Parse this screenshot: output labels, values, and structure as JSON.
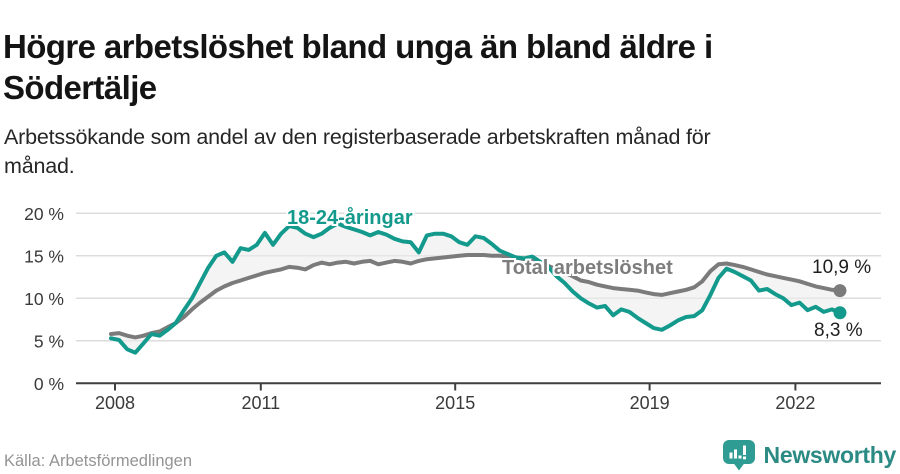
{
  "header": {
    "title_lines": [
      "Högre arbetslöshet bland unga än bland äldre i",
      "Södertälje"
    ],
    "subtitle_lines": [
      "Arbetssökande som andel av den registerbaserade arbetskraften månad för",
      "månad."
    ]
  },
  "footer": {
    "source": "Källa: Arbetsförmedlingen",
    "brand_name": "Newsworthy"
  },
  "colors": {
    "youth_line": "#149a8d",
    "total_line": "#7b7b7b",
    "fill_between": "#ededed",
    "gridline": "#dcdcdc",
    "axis": "#3f3f3f",
    "brand_teal": "#2f9c93"
  },
  "chart_data": {
    "type": "line",
    "x_unit": "decimal_year_monthly",
    "x_start": 2007.9167,
    "x_step": 0.166667,
    "n_points": 91,
    "grid": "horizontal",
    "ylim": [
      0,
      21.5
    ],
    "xlim": [
      2007.75,
      2023.1
    ],
    "yticks": [
      {
        "value": 0,
        "label": "0 %"
      },
      {
        "value": 5,
        "label": "5 %"
      },
      {
        "value": 10,
        "label": "10 %"
      },
      {
        "value": 15,
        "label": "15 %"
      },
      {
        "value": 20,
        "label": "20 %"
      }
    ],
    "xticks": [
      {
        "value": 2008,
        "label": "2008"
      },
      {
        "value": 2011,
        "label": "2011"
      },
      {
        "value": 2015,
        "label": "2015"
      },
      {
        "value": 2019,
        "label": "2019"
      },
      {
        "value": 2022,
        "label": "2022"
      }
    ],
    "fill_between": {
      "color": "#ededed",
      "opacity": 0.6
    },
    "series": [
      {
        "name": "18-24-åringar",
        "color": "#149a8d",
        "end_label": "8,3 %",
        "values": [
          5.3,
          5.1,
          4.0,
          3.6,
          4.7,
          5.8,
          5.6,
          6.3,
          7.1,
          8.6,
          10.0,
          11.8,
          13.6,
          15.0,
          15.4,
          14.3,
          15.9,
          15.7,
          16.3,
          17.7,
          16.3,
          17.6,
          18.5,
          18.3,
          17.6,
          17.2,
          17.6,
          18.3,
          18.8,
          18.4,
          18.1,
          17.8,
          17.4,
          17.8,
          17.5,
          17.0,
          16.7,
          16.6,
          15.4,
          17.4,
          17.6,
          17.6,
          17.3,
          16.6,
          16.3,
          17.3,
          17.1,
          16.4,
          15.6,
          15.2,
          14.8,
          14.7,
          14.9,
          14.3,
          13.7,
          12.6,
          11.8,
          10.8,
          10.0,
          9.4,
          8.9,
          9.1,
          8.0,
          8.7,
          8.4,
          7.7,
          7.1,
          6.5,
          6.3,
          6.8,
          7.4,
          7.8,
          7.9,
          8.6,
          10.4,
          12.4,
          13.5,
          13.1,
          12.6,
          12.1,
          10.9,
          11.1,
          10.5,
          10.0,
          9.2,
          9.5,
          8.6,
          9.0,
          8.4,
          8.7,
          8.3
        ]
      },
      {
        "name": "Total arbetslöshet",
        "color": "#7b7b7b",
        "end_label": "10,9 %",
        "values": [
          5.8,
          5.9,
          5.6,
          5.4,
          5.6,
          5.9,
          6.1,
          6.6,
          7.1,
          7.8,
          8.7,
          9.5,
          10.2,
          10.9,
          11.4,
          11.8,
          12.1,
          12.4,
          12.7,
          13.0,
          13.2,
          13.4,
          13.7,
          13.6,
          13.4,
          13.9,
          14.2,
          14.0,
          14.2,
          14.3,
          14.1,
          14.3,
          14.4,
          14.0,
          14.2,
          14.4,
          14.3,
          14.1,
          14.4,
          14.6,
          14.7,
          14.8,
          14.9,
          15.0,
          15.1,
          15.1,
          15.1,
          15.0,
          15.0,
          14.9,
          14.8,
          14.6,
          14.4,
          14.2,
          13.8,
          13.4,
          13.0,
          12.6,
          12.1,
          11.9,
          11.6,
          11.4,
          11.2,
          11.1,
          11.0,
          10.9,
          10.7,
          10.5,
          10.4,
          10.6,
          10.8,
          11.0,
          11.3,
          12.0,
          13.2,
          14.0,
          14.1,
          13.9,
          13.7,
          13.4,
          13.1,
          12.8,
          12.6,
          12.4,
          12.2,
          12.0,
          11.7,
          11.4,
          11.2,
          11.0,
          10.9
        ]
      }
    ]
  }
}
